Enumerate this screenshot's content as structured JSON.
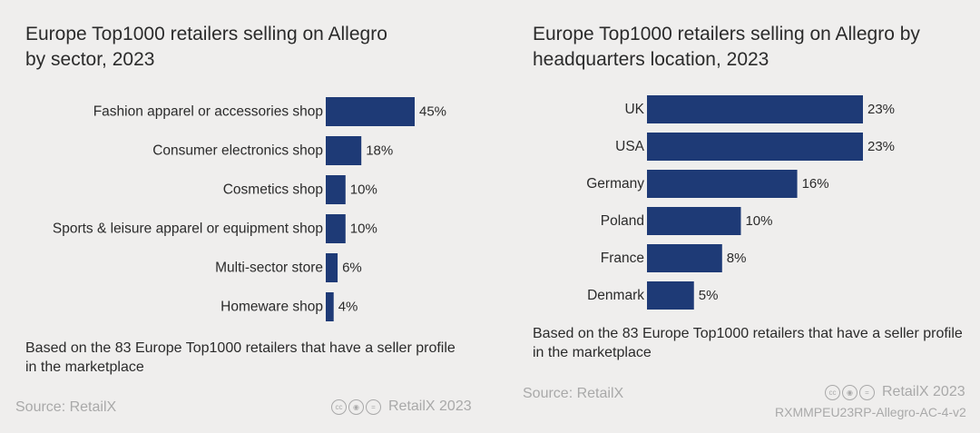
{
  "left": {
    "title": "Europe Top1000 retailers selling on Allegro\nby sector, 2023",
    "note": "Based on the 83 Europe Top1000 retailers that have a seller profile in the marketplace",
    "source": "Source: RetailX",
    "copyright": "RetailX 2023"
  },
  "right": {
    "title": "Europe Top1000 retailers selling on Allegro by headquarters location, 2023",
    "note": "Based on the 83 Europe Top1000 retailers that have a seller profile in the marketplace",
    "source": "Source: RetailX",
    "copyright": "RetailX 2023",
    "doc_id": "RXMMPEU23RP-Allegro-AC-4-v2"
  },
  "icons": [
    "creative-commons-icon",
    "attribution-icon",
    "no-derivatives-icon"
  ],
  "colors": {
    "bar": "#1e3a76",
    "background": "#efeeed",
    "muted": "#a9a9a9"
  },
  "chart_data": [
    {
      "type": "bar",
      "orientation": "horizontal",
      "title": "Europe Top1000 retailers selling on Allegro by sector, 2023",
      "categories": [
        "Fashion apparel or accessories shop",
        "Consumer electronics shop",
        "Cosmetics shop",
        "Sports & leisure apparel or equipment shop",
        "Multi-sector store",
        "Homeware shop"
      ],
      "values": [
        45,
        18,
        10,
        10,
        6,
        4
      ],
      "value_labels": [
        "45%",
        "18%",
        "10%",
        "10%",
        "6%",
        "4%"
      ],
      "unit": "%",
      "xlim": [
        0,
        45
      ],
      "grid": false,
      "legend": "none"
    },
    {
      "type": "bar",
      "orientation": "horizontal",
      "title": "Europe Top1000 retailers selling on Allegro by headquarters location, 2023",
      "categories": [
        "UK",
        "USA",
        "Germany",
        "Poland",
        "France",
        "Denmark"
      ],
      "values": [
        23,
        23,
        16,
        10,
        8,
        5
      ],
      "value_labels": [
        "23%",
        "23%",
        "16%",
        "10%",
        "8%",
        "5%"
      ],
      "unit": "%",
      "xlim": [
        0,
        23
      ],
      "grid": false,
      "legend": "none"
    }
  ]
}
